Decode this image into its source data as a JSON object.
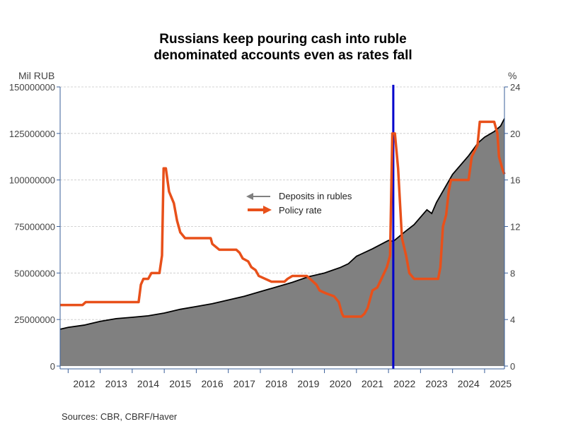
{
  "chart_data": {
    "type": "area",
    "title_lines": [
      "Russians keep pouring cash into ruble",
      "denominated accounts even as rates fall"
    ],
    "left_unit": "Mil RUB",
    "right_unit": "%",
    "ylim_left": [
      0,
      150000000
    ],
    "ylim_right": [
      0,
      24
    ],
    "left_ticks": [
      "0",
      "25000000",
      "50000000",
      "75000000",
      "100000000",
      "125000000",
      "150000000"
    ],
    "right_ticks": [
      "0",
      "4",
      "8",
      "12",
      "16",
      "20",
      "24"
    ],
    "xlim": [
      2011.75,
      2025.62
    ],
    "x_ticks": [
      "2012",
      "2013",
      "2014",
      "2015",
      "2016",
      "2017",
      "2018",
      "2019",
      "2020",
      "2021",
      "2022",
      "2023",
      "2024",
      "2025"
    ],
    "grid": true,
    "legend_placement": "center",
    "vertical_marker_x": 2022.15,
    "series": [
      {
        "name": "Deposits in rubles",
        "axis": "left",
        "style": "area",
        "color": "#808080",
        "line_color": "#000000",
        "points": [
          [
            2011.75,
            19800000
          ],
          [
            2012.0,
            20800000
          ],
          [
            2012.5,
            22000000
          ],
          [
            2013.0,
            24000000
          ],
          [
            2013.5,
            25500000
          ],
          [
            2014.0,
            26200000
          ],
          [
            2014.5,
            27000000
          ],
          [
            2015.0,
            28500000
          ],
          [
            2015.5,
            30500000
          ],
          [
            2016.0,
            32000000
          ],
          [
            2016.5,
            33500000
          ],
          [
            2017.0,
            35500000
          ],
          [
            2017.5,
            37500000
          ],
          [
            2018.0,
            40000000
          ],
          [
            2018.5,
            42500000
          ],
          [
            2019.0,
            45000000
          ],
          [
            2019.5,
            48000000
          ],
          [
            2020.0,
            50000000
          ],
          [
            2020.5,
            53000000
          ],
          [
            2020.75,
            55000000
          ],
          [
            2021.0,
            59000000
          ],
          [
            2021.5,
            63000000
          ],
          [
            2022.0,
            67500000
          ],
          [
            2022.15,
            67000000
          ],
          [
            2022.5,
            72000000
          ],
          [
            2022.8,
            76000000
          ],
          [
            2023.0,
            80000000
          ],
          [
            2023.2,
            84000000
          ],
          [
            2023.35,
            82000000
          ],
          [
            2023.5,
            88000000
          ],
          [
            2023.8,
            97000000
          ],
          [
            2024.0,
            103000000
          ],
          [
            2024.5,
            113000000
          ],
          [
            2024.8,
            120000000
          ],
          [
            2025.0,
            123000000
          ],
          [
            2025.3,
            126000000
          ],
          [
            2025.5,
            129000000
          ],
          [
            2025.62,
            133000000
          ]
        ]
      },
      {
        "name": "Policy rate",
        "axis": "right",
        "style": "line",
        "color": "#e8501a",
        "points": [
          [
            2011.75,
            5.25
          ],
          [
            2012.45,
            5.25
          ],
          [
            2012.55,
            5.5
          ],
          [
            2014.2,
            5.5
          ],
          [
            2014.27,
            7.0
          ],
          [
            2014.35,
            7.5
          ],
          [
            2014.5,
            7.5
          ],
          [
            2014.6,
            8.0
          ],
          [
            2014.85,
            8.0
          ],
          [
            2014.93,
            9.5
          ],
          [
            2014.98,
            17.0
          ],
          [
            2015.05,
            17.0
          ],
          [
            2015.15,
            15.0
          ],
          [
            2015.3,
            14.0
          ],
          [
            2015.4,
            12.5
          ],
          [
            2015.5,
            11.5
          ],
          [
            2015.65,
            11.0
          ],
          [
            2016.45,
            11.0
          ],
          [
            2016.5,
            10.5
          ],
          [
            2016.72,
            10.0
          ],
          [
            2017.25,
            10.0
          ],
          [
            2017.35,
            9.75
          ],
          [
            2017.45,
            9.25
          ],
          [
            2017.62,
            9.0
          ],
          [
            2017.72,
            8.5
          ],
          [
            2017.85,
            8.25
          ],
          [
            2017.95,
            7.75
          ],
          [
            2018.15,
            7.5
          ],
          [
            2018.35,
            7.25
          ],
          [
            2018.75,
            7.25
          ],
          [
            2018.85,
            7.5
          ],
          [
            2019.0,
            7.75
          ],
          [
            2019.45,
            7.75
          ],
          [
            2019.55,
            7.5
          ],
          [
            2019.65,
            7.25
          ],
          [
            2019.75,
            7.0
          ],
          [
            2019.85,
            6.5
          ],
          [
            2020.05,
            6.25
          ],
          [
            2020.3,
            6.0
          ],
          [
            2020.45,
            5.5
          ],
          [
            2020.55,
            4.5
          ],
          [
            2020.6,
            4.25
          ],
          [
            2021.15,
            4.25
          ],
          [
            2021.25,
            4.5
          ],
          [
            2021.35,
            5.0
          ],
          [
            2021.5,
            6.5
          ],
          [
            2021.65,
            6.75
          ],
          [
            2021.78,
            7.5
          ],
          [
            2021.95,
            8.5
          ],
          [
            2022.05,
            9.5
          ],
          [
            2022.12,
            20.0
          ],
          [
            2022.2,
            20.0
          ],
          [
            2022.3,
            17.0
          ],
          [
            2022.42,
            11.0
          ],
          [
            2022.55,
            9.5
          ],
          [
            2022.65,
            8.0
          ],
          [
            2022.8,
            7.5
          ],
          [
            2023.55,
            7.5
          ],
          [
            2023.62,
            8.5
          ],
          [
            2023.7,
            12.0
          ],
          [
            2023.8,
            13.0
          ],
          [
            2023.88,
            15.0
          ],
          [
            2023.95,
            16.0
          ],
          [
            2024.5,
            16.0
          ],
          [
            2024.6,
            18.0
          ],
          [
            2024.78,
            19.0
          ],
          [
            2024.85,
            21.0
          ],
          [
            2025.3,
            21.0
          ],
          [
            2025.4,
            20.0
          ],
          [
            2025.45,
            18.0
          ],
          [
            2025.55,
            17.0
          ],
          [
            2025.62,
            16.5
          ]
        ]
      }
    ]
  },
  "source_text": "Sources:  CBR, CBRF/Haver"
}
